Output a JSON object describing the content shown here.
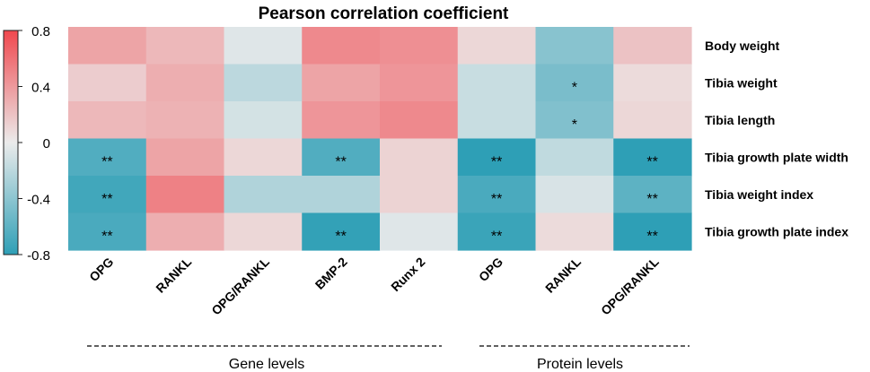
{
  "chart_data": {
    "type": "heatmap",
    "title": "Pearson correlation coefficient",
    "columns": [
      "OPG",
      "RANKL",
      "OPG/RANKL",
      "BMP-2",
      "Runx 2",
      "OPG",
      "RANKL",
      "OPG/RANKL"
    ],
    "rows": [
      "Body weight",
      "Tibia weight",
      "Tibia length",
      "Tibia growth plate width",
      "Tibia weight index",
      "Tibia growth plate index"
    ],
    "values": [
      [
        0.35,
        0.25,
        -0.05,
        0.48,
        0.45,
        0.1,
        -0.42,
        0.2
      ],
      [
        0.15,
        0.3,
        -0.2,
        0.35,
        0.42,
        -0.15,
        -0.48,
        0.08
      ],
      [
        0.25,
        0.28,
        -0.1,
        0.42,
        0.48,
        -0.15,
        -0.45,
        0.1
      ],
      [
        -0.65,
        0.35,
        0.1,
        -0.65,
        0.12,
        -0.8,
        -0.18,
        -0.8
      ],
      [
        -0.72,
        0.52,
        -0.25,
        -0.25,
        0.12,
        -0.68,
        -0.08,
        -0.6
      ],
      [
        -0.68,
        0.3,
        0.1,
        -0.78,
        -0.05,
        -0.75,
        0.08,
        -0.8
      ]
    ],
    "significance": [
      [
        "",
        "",
        "",
        "",
        "",
        "",
        "",
        ""
      ],
      [
        "",
        "",
        "",
        "",
        "",
        "",
        "*",
        ""
      ],
      [
        "",
        "",
        "",
        "",
        "",
        "",
        "*",
        ""
      ],
      [
        "**",
        "",
        "",
        "**",
        "",
        "**",
        "",
        "**"
      ],
      [
        "**",
        "",
        "",
        "",
        "",
        "**",
        "",
        "**"
      ],
      [
        "**",
        "",
        "",
        "**",
        "",
        "**",
        "",
        "**"
      ]
    ],
    "colorbar": {
      "range": [
        -0.8,
        0.8
      ],
      "ticks": [
        0.8,
        0.4,
        0,
        -0.4,
        -0.8
      ],
      "tick_labels": [
        "0.8",
        "0.4",
        "0",
        "-0.4",
        "-0.8"
      ],
      "colors": {
        "high": "#f0484e",
        "mid": "#ebebeb",
        "low": "#2e9fb6"
      }
    },
    "groups": [
      {
        "label": "Gene levels",
        "columns": [
          0,
          4
        ]
      },
      {
        "label": "Protein levels",
        "columns": [
          5,
          7
        ]
      }
    ]
  }
}
